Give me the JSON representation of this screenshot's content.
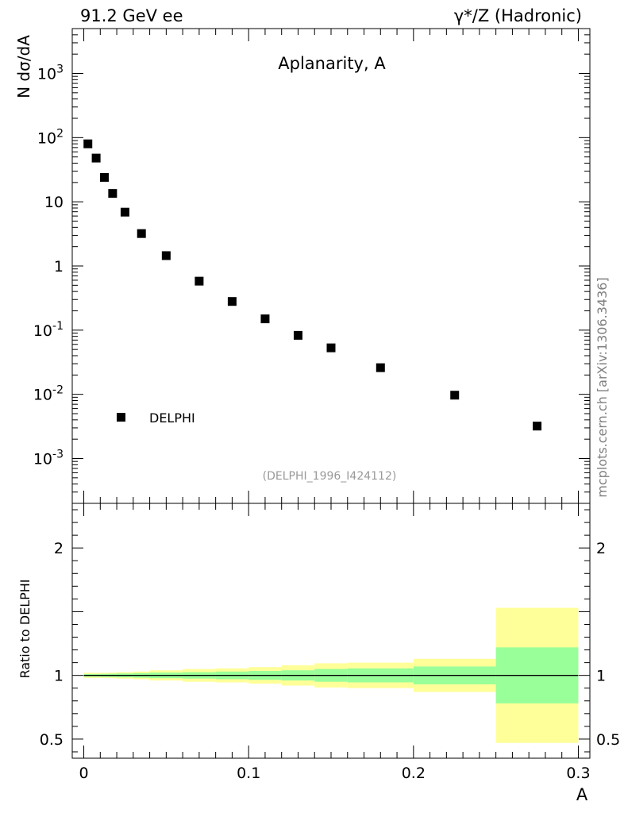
{
  "header": {
    "left": "91.2 GeV ee",
    "right": "γ*/Z (Hadronic)"
  },
  "side_label": "mcplots.cern.ch [arXiv:1306.3436]",
  "reference": "(DELPHI_1996_I424112)",
  "chart_data": [
    {
      "panel": "main",
      "type": "scatter",
      "title": "Aplanarity, A",
      "ylabel": "N  dσ/dA",
      "yscale": "log",
      "ylim": [
        0.0002,
        5000
      ],
      "xlim": [
        -0.007,
        0.307
      ],
      "ytick_labels": [
        {
          "value": 0.001,
          "base": "10",
          "exp": "-3"
        },
        {
          "value": 0.01,
          "base": "10",
          "exp": "-2"
        },
        {
          "value": 0.1,
          "base": "10",
          "exp": "-1"
        },
        {
          "value": 1,
          "base": "1",
          "exp": ""
        },
        {
          "value": 10,
          "base": "10",
          "exp": ""
        },
        {
          "value": 100,
          "base": "10",
          "exp": "2"
        },
        {
          "value": 1000,
          "base": "10",
          "exp": "3"
        }
      ],
      "legend": [
        {
          "name": "DELPHI",
          "marker": "square",
          "position": "lower-left"
        }
      ],
      "series": [
        {
          "name": "DELPHI",
          "x": [
            0.0025,
            0.0075,
            0.0125,
            0.0175,
            0.025,
            0.035,
            0.05,
            0.07,
            0.09,
            0.11,
            0.13,
            0.15,
            0.18,
            0.225,
            0.275
          ],
          "y": [
            80,
            48,
            24,
            13.5,
            6.9,
            3.2,
            1.45,
            0.58,
            0.28,
            0.15,
            0.083,
            0.053,
            0.026,
            0.0097,
            0.0032
          ]
        }
      ]
    },
    {
      "panel": "ratio",
      "type": "area",
      "ylabel": "Ratio to DELPHI",
      "xlabel": "A",
      "ylim": [
        0.35,
        2.35
      ],
      "xlim": [
        -0.007,
        0.307
      ],
      "xticks": [
        0,
        0.1,
        0.2,
        0.3
      ],
      "xtick_labels": [
        "0",
        "0.1",
        "0.2",
        "0.3"
      ],
      "yticks": [
        0.5,
        1,
        2
      ],
      "ytick_labels": [
        "0.5",
        "1",
        "2"
      ],
      "bins": [
        {
          "lo": 0.0,
          "hi": 0.005,
          "stat": 0.01,
          "total": 0.02
        },
        {
          "lo": 0.005,
          "hi": 0.01,
          "stat": 0.01,
          "total": 0.02
        },
        {
          "lo": 0.01,
          "hi": 0.015,
          "stat": 0.012,
          "total": 0.02
        },
        {
          "lo": 0.015,
          "hi": 0.02,
          "stat": 0.013,
          "total": 0.022
        },
        {
          "lo": 0.02,
          "hi": 0.03,
          "stat": 0.015,
          "total": 0.025
        },
        {
          "lo": 0.03,
          "hi": 0.04,
          "stat": 0.018,
          "total": 0.03
        },
        {
          "lo": 0.04,
          "hi": 0.06,
          "stat": 0.022,
          "total": 0.04
        },
        {
          "lo": 0.06,
          "hi": 0.08,
          "stat": 0.025,
          "total": 0.05
        },
        {
          "lo": 0.08,
          "hi": 0.1,
          "stat": 0.03,
          "total": 0.055
        },
        {
          "lo": 0.1,
          "hi": 0.12,
          "stat": 0.035,
          "total": 0.065
        },
        {
          "lo": 0.12,
          "hi": 0.14,
          "stat": 0.04,
          "total": 0.08
        },
        {
          "lo": 0.14,
          "hi": 0.16,
          "stat": 0.05,
          "total": 0.095
        },
        {
          "lo": 0.16,
          "hi": 0.2,
          "stat": 0.055,
          "total": 0.1
        },
        {
          "lo": 0.2,
          "hi": 0.25,
          "stat": 0.07,
          "total": 0.13
        },
        {
          "lo": 0.25,
          "hi": 0.3,
          "stat": 0.22,
          "total": 0.53
        }
      ],
      "colors": {
        "stat": "#99ff99",
        "total": "#ffff99",
        "line": "#000000"
      }
    }
  ]
}
